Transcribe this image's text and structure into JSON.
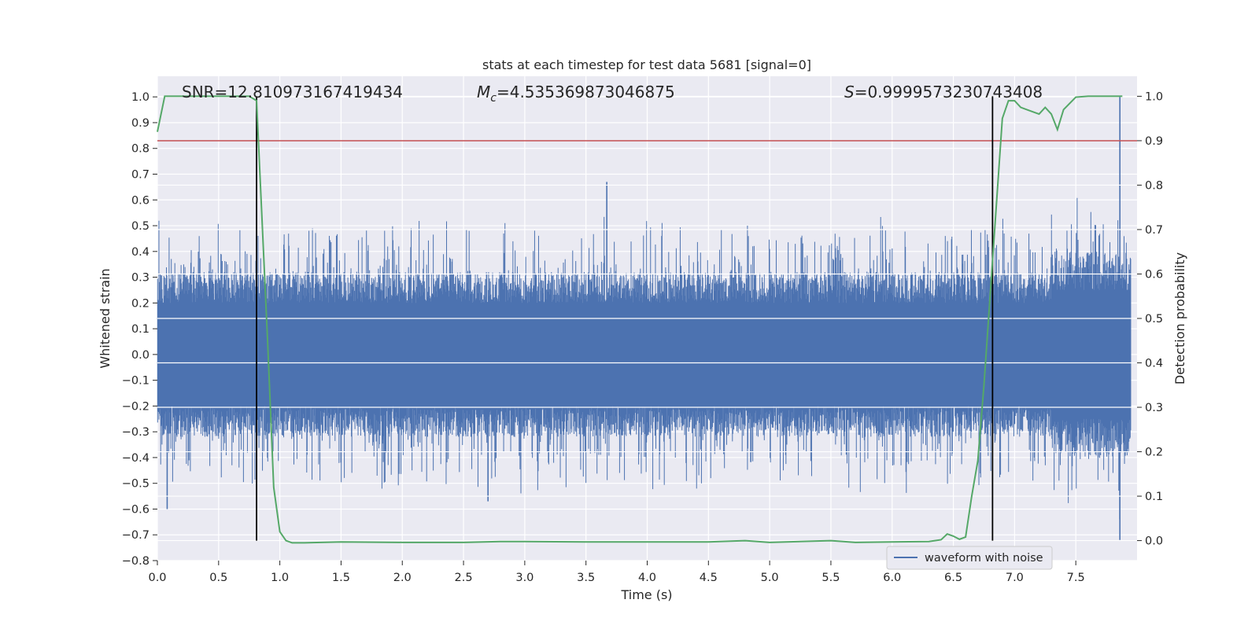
{
  "chart_data": {
    "type": "line",
    "title": "stats at each timestep for test data 5681 [signal=0]",
    "xlabel": "Time (s)",
    "ylabel_left": "Whitened strain",
    "ylabel_right": "Detection probability",
    "xlim": [
      0,
      8
    ],
    "ylim_left": [
      -0.8,
      1.08
    ],
    "ylim_right": [
      -0.045,
      1.045
    ],
    "x_ticks": [
      "0.0",
      "0.5",
      "1.0",
      "1.5",
      "2.0",
      "2.5",
      "3.0",
      "3.5",
      "4.0",
      "4.5",
      "5.0",
      "5.5",
      "6.0",
      "6.5",
      "7.0",
      "7.5"
    ],
    "y_ticks_left": [
      "1.0",
      "0.9",
      "0.8",
      "0.7",
      "0.6",
      "0.5",
      "0.4",
      "0.3",
      "0.2",
      "0.1",
      "0.0",
      "−0.1",
      "−0.2",
      "−0.3",
      "−0.4",
      "−0.5",
      "−0.6",
      "−0.7",
      "−0.8"
    ],
    "y_ticks_right": [
      "1.0",
      "0.9",
      "0.8",
      "0.7",
      "0.6",
      "0.5",
      "0.4",
      "0.3",
      "0.2",
      "0.1",
      "0.0"
    ],
    "annotations": {
      "snr": "SNR=12.810973167419434",
      "mc_symbol": "M",
      "mc_sub": "c",
      "mc_value": "=4.535369873046875",
      "s_symbol": "S",
      "s_value": "=0.9999573230743408"
    },
    "threshold": {
      "value": 0.9,
      "axis": "right",
      "color": "#c44e52"
    },
    "detection_boundaries": [
      0.81,
      6.82
    ],
    "series": [
      {
        "name": "waveform with noise",
        "axis": "left",
        "color": "#4c72b0",
        "envelope_note": "dense noise between roughly -0.45 and +0.45 with spikes",
        "peaks": [
          {
            "x": 3.67,
            "y": 0.67
          },
          {
            "x": 7.86,
            "y": 1.0
          },
          {
            "x": 7.86,
            "y": -0.72
          },
          {
            "x": 0.08,
            "y": -0.6
          },
          {
            "x": 2.7,
            "y": -0.57
          }
        ]
      },
      {
        "name": "",
        "axis": "right",
        "color": "#55a868",
        "x": [
          0.0,
          0.06,
          0.2,
          0.4,
          0.6,
          0.75,
          0.81,
          0.85,
          0.9,
          0.95,
          1.0,
          1.05,
          1.1,
          1.2,
          1.5,
          2.0,
          2.5,
          2.8,
          3.0,
          3.5,
          4.0,
          4.5,
          4.8,
          5.0,
          5.5,
          5.7,
          6.0,
          6.3,
          6.4,
          6.45,
          6.5,
          6.55,
          6.6,
          6.65,
          6.7,
          6.75,
          6.8,
          6.85,
          6.9,
          6.95,
          7.0,
          7.05,
          7.1,
          7.2,
          7.25,
          7.3,
          7.35,
          7.4,
          7.5,
          7.6,
          7.7,
          7.8,
          7.88
        ],
        "y": [
          0.92,
          1.0,
          1.0,
          1.0,
          1.0,
          1.0,
          0.99,
          0.75,
          0.45,
          0.12,
          0.02,
          0.0,
          -0.005,
          -0.005,
          -0.003,
          -0.004,
          -0.004,
          -0.002,
          -0.002,
          -0.003,
          -0.003,
          -0.003,
          0.0,
          -0.004,
          0.0,
          -0.004,
          -0.003,
          -0.002,
          0.002,
          0.015,
          0.01,
          0.003,
          0.008,
          0.1,
          0.18,
          0.35,
          0.55,
          0.75,
          0.95,
          0.99,
          0.99,
          0.975,
          0.97,
          0.96,
          0.975,
          0.96,
          0.925,
          0.97,
          0.998,
          1.0,
          1.0,
          1.0,
          1.0
        ]
      }
    ],
    "legend": {
      "entries": [
        "waveform with noise"
      ],
      "placement": "lower-right"
    },
    "grid": true,
    "colors": {
      "plot_background": "#eaeaf2",
      "grid": "#ffffff",
      "waveform": "#4c72b0",
      "probability": "#55a868",
      "threshold": "#c44e52",
      "boundary": "#000000"
    }
  }
}
